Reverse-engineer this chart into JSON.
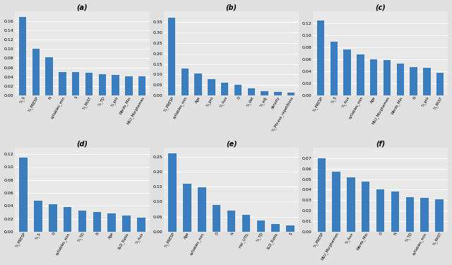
{
  "subplots": [
    {
      "title": "(a)",
      "categories": [
        "%_S",
        "%_PRESP",
        "N",
        "syllables_min",
        "S",
        "%_PAST",
        "%_TD",
        "%_pro",
        "Words_Min",
        "MLU_Morphemes"
      ],
      "values": [
        0.168,
        0.1,
        0.082,
        0.05,
        0.05,
        0.049,
        0.046,
        0.044,
        0.041,
        0.041
      ],
      "ylim": [
        0,
        0.18
      ],
      "yticks": [
        0.0,
        0.02,
        0.04,
        0.06,
        0.08,
        0.1,
        0.12,
        0.14,
        0.16
      ]
    },
    {
      "title": "(b)",
      "categories": [
        "%_PRESP",
        "syllables_min",
        "Age",
        "%_pro",
        "%_Aux",
        "O",
        "%_det",
        "%_adj",
        "density",
        "%_Phrase_repetitions"
      ],
      "values": [
        0.37,
        0.128,
        0.104,
        0.078,
        0.062,
        0.052,
        0.035,
        0.02,
        0.018,
        0.015
      ],
      "ylim": [
        0,
        0.4
      ],
      "yticks": [
        0.0,
        0.05,
        0.1,
        0.15,
        0.2,
        0.25,
        0.3,
        0.35
      ]
    },
    {
      "title": "(c)",
      "categories": [
        "%_PRESP",
        "%_S",
        "%_Aux",
        "syllables_min",
        "Age",
        "MLU_Morphemes",
        "Words_Min",
        "N",
        "%_pro",
        "%_PAST"
      ],
      "values": [
        0.125,
        0.09,
        0.077,
        0.068,
        0.06,
        0.059,
        0.053,
        0.047,
        0.046,
        0.038
      ],
      "ylim": [
        0,
        0.14
      ],
      "yticks": [
        0.0,
        0.02,
        0.04,
        0.06,
        0.08,
        0.1,
        0.12
      ]
    },
    {
      "title": "(d)",
      "categories": [
        "%_PRESP",
        "%_S",
        "O",
        "syllables_min",
        "%_TD",
        "N",
        "Age",
        "SLD_Ratio",
        "%_Aux"
      ],
      "values": [
        0.115,
        0.048,
        0.042,
        0.038,
        0.033,
        0.03,
        0.028,
        0.025,
        0.022
      ],
      "ylim": [
        0,
        0.13
      ],
      "yticks": [
        0.0,
        0.02,
        0.04,
        0.06,
        0.08,
        0.1,
        0.12
      ]
    },
    {
      "title": "(e)",
      "categories": [
        "%_PRESP",
        "Age",
        "syllables_min",
        "O",
        "N",
        "msr_UTIL",
        "%_TD",
        "SLD_Ratio",
        "S"
      ],
      "values": [
        0.26,
        0.16,
        0.148,
        0.088,
        0.07,
        0.055,
        0.038,
        0.025,
        0.02
      ],
      "ylim": [
        0,
        0.28
      ],
      "yticks": [
        0.0,
        0.05,
        0.1,
        0.15,
        0.2,
        0.25
      ]
    },
    {
      "title": "(f)",
      "categories": [
        "%_PRESP",
        "MLU_Morphemes",
        "%_Aux",
        "Words_Min",
        "O",
        "N",
        "%_TD",
        "syllables_min",
        "%_PAST"
      ],
      "values": [
        0.07,
        0.057,
        0.052,
        0.048,
        0.04,
        0.038,
        0.033,
        0.032,
        0.031
      ],
      "ylim": [
        0,
        0.08
      ],
      "yticks": [
        0.0,
        0.01,
        0.02,
        0.03,
        0.04,
        0.05,
        0.06,
        0.07
      ]
    }
  ],
  "bar_color": "#3a7ebf",
  "background_color": "#e8e8e8",
  "grid_color": "#ffffff",
  "figure_facecolor": "#e0e0e0",
  "figure_size": [
    6.4,
    3.75
  ],
  "dpi": 100
}
